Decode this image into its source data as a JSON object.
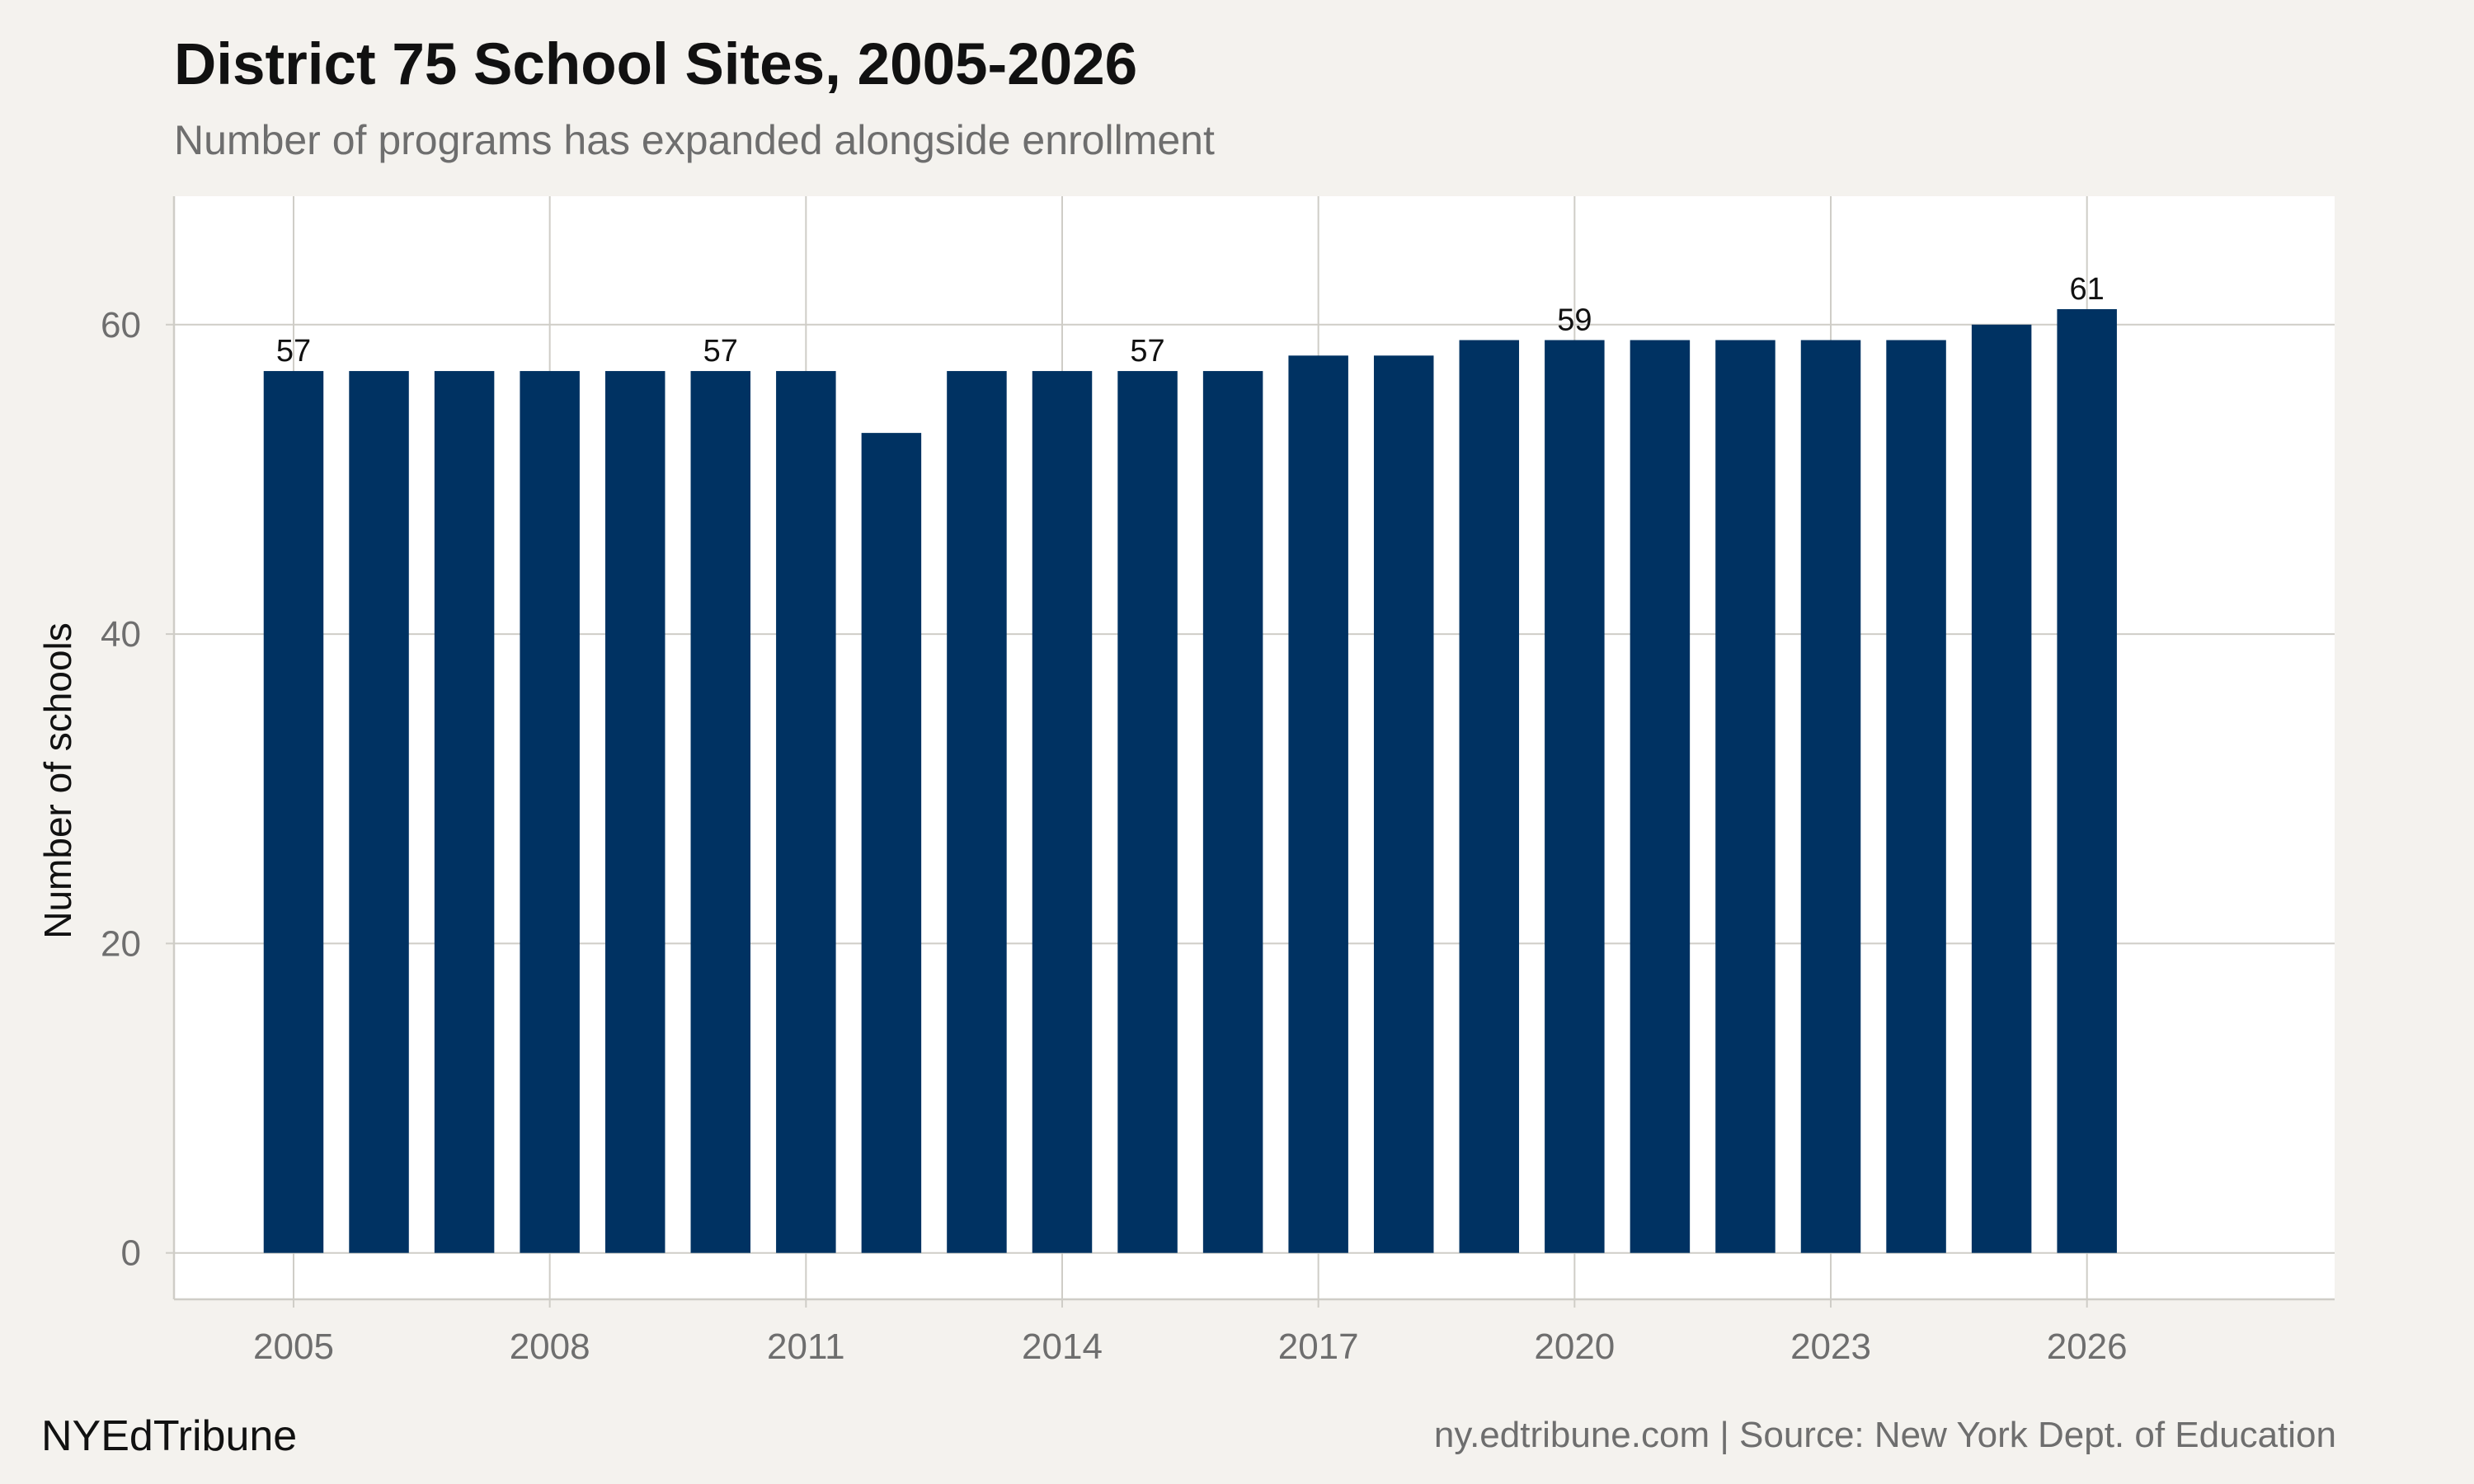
{
  "header": {
    "title": "District 75 School Sites, 2005-2026",
    "subtitle": "Number of programs has expanded alongside enrollment"
  },
  "footer": {
    "brand": "NYEdTribune",
    "source": "ny.edtribune.com | Source: New York Dept. of Education"
  },
  "colors": {
    "bar": "#003262",
    "background": "#f4f2ee",
    "panel": "#ffffff",
    "grid": "#cfcdc7",
    "tick_text": "#6e6e6e",
    "label_text": "#111111"
  },
  "chart_data": {
    "type": "bar",
    "title": "District 75 School Sites, 2005-2026",
    "subtitle": "Number of programs has expanded alongside enrollment",
    "xlabel": "",
    "ylabel": "Number of schools",
    "x": [
      2005,
      2006,
      2007,
      2008,
      2009,
      2010,
      2011,
      2012,
      2013,
      2014,
      2015,
      2016,
      2017,
      2018,
      2019,
      2020,
      2021,
      2022,
      2023,
      2024,
      2025,
      2026
    ],
    "values": [
      57,
      57,
      57,
      57,
      57,
      57,
      57,
      53,
      57,
      57,
      57,
      57,
      58,
      58,
      59,
      59,
      59,
      59,
      59,
      59,
      60,
      61
    ],
    "data_labels": [
      {
        "x": 2005,
        "label": "57"
      },
      {
        "x": 2010,
        "label": "57"
      },
      {
        "x": 2015,
        "label": "57"
      },
      {
        "x": 2020,
        "label": "59"
      },
      {
        "x": 2026,
        "label": "61"
      }
    ],
    "x_ticks": [
      "2005",
      "2008",
      "2011",
      "2014",
      "2017",
      "2020",
      "2023",
      "2026"
    ],
    "y_ticks": [
      "0",
      "20",
      "40",
      "60"
    ],
    "xlim": [
      2003.6,
      2028.9
    ],
    "ylim": [
      -3,
      68.3
    ],
    "grid": true,
    "legend": "none"
  }
}
